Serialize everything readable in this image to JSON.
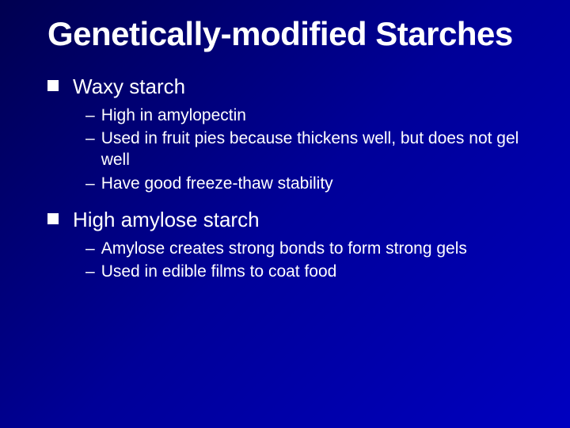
{
  "background_gradient": [
    "#000050",
    "#000098",
    "#0000c0"
  ],
  "text_color": "#ffffff",
  "title": {
    "text": "Genetically-modified Starches",
    "fontsize": 42,
    "fontweight": 700
  },
  "bullet_style": {
    "level1_marker": "square",
    "level1_marker_color": "#ffffff",
    "level1_marker_size": 14,
    "level2_marker": "–"
  },
  "items": [
    {
      "label": "Waxy starch",
      "fontsize": 26,
      "subitems": [
        "High in amylopectin",
        "Used in fruit pies because thickens well, but does not gel well",
        "Have good freeze-thaw stability"
      ]
    },
    {
      "label": "High amylose starch",
      "fontsize": 26,
      "subitems": [
        "Amylose creates strong bonds to form strong gels",
        "Used in edible films to coat food"
      ]
    }
  ],
  "sub_fontsize": 21
}
